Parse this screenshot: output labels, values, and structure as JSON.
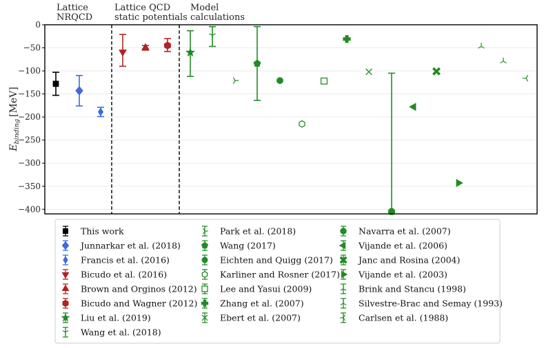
{
  "chart_data": {
    "type": "scatter",
    "ylabel_main": "E",
    "ylabel_sub": "binding",
    "ylabel_unit": "[MeV]",
    "ylim": [
      -410,
      0
    ],
    "yticks": [
      0,
      -50,
      -100,
      -150,
      -200,
      -250,
      -300,
      -350,
      -400
    ],
    "grid": "horizontal",
    "legend_position": "bottom",
    "groups": [
      {
        "line1": "Lattice",
        "line2": "NRQCD"
      },
      {
        "line1": "Lattice QCD",
        "line2": "static potentials"
      },
      {
        "line1": "Model",
        "line2": "calculations"
      }
    ],
    "points": [
      {
        "label": "This work",
        "color": "#000000",
        "marker": "square",
        "y": -128,
        "err_lo": -153,
        "err_hi": -103
      },
      {
        "label": "Junnarkar et al. (2018)",
        "color": "#4169e1",
        "marker": "diamond",
        "y": -143,
        "err_lo": -176,
        "err_hi": -110
      },
      {
        "label": "Francis et al. (2016)",
        "color": "#4169e1",
        "marker": "thin_diamond",
        "y": -189,
        "err_lo": -199,
        "err_hi": -179
      },
      {
        "label": "Bicudo et al. (2016)",
        "color": "#b22222",
        "marker": "triangle_down",
        "y": -59,
        "err_lo": -90,
        "err_hi": -21
      },
      {
        "label": "Brown and Orginos (2012)",
        "color": "#b22222",
        "marker": "triangle_up",
        "y": -50,
        "err_lo": -55,
        "err_hi": -45
      },
      {
        "label": "Bicudo and Wagner (2012)",
        "color": "#b22222",
        "marker": "hexagon_filled",
        "y": -45,
        "err_lo": -58,
        "err_hi": -30
      },
      {
        "label": "Liu et al. (2019)",
        "color": "#228b22",
        "marker": "star",
        "y": -60,
        "err_lo": -112,
        "err_hi": -13
      },
      {
        "label": "Wang et al. (2018)",
        "color": "#228b22",
        "marker": "tri_down",
        "y": -23,
        "err_lo": -47,
        "err_hi": -4
      },
      {
        "label": "Park et al. (2018)",
        "color": "#228b22",
        "marker": "tri_right",
        "y": -121,
        "err_lo": null,
        "err_hi": null
      },
      {
        "label": "Wang (2017)",
        "color": "#228b22",
        "marker": "pentagon",
        "y": -84,
        "err_lo": -164,
        "err_hi": -4
      },
      {
        "label": "Eichten and Quigg (2017)",
        "color": "#228b22",
        "marker": "circle",
        "y": -121,
        "err_lo": null,
        "err_hi": null
      },
      {
        "label": "Karliner and Rosner (2017)",
        "color": "#228b22",
        "marker": "hexagon_open",
        "y": -215,
        "err_lo": null,
        "err_hi": null
      },
      {
        "label": "Lee and Yasui (2009)",
        "color": "#228b22",
        "marker": "square_open",
        "y": -122,
        "err_lo": null,
        "err_hi": null
      },
      {
        "label": "Zhang et al. (2007)",
        "color": "#228b22",
        "marker": "plus_filled",
        "y": -31,
        "err_lo": null,
        "err_hi": null
      },
      {
        "label": "Ebert et al. (2007)",
        "color": "#228b22",
        "marker": "x",
        "y": -102,
        "err_lo": null,
        "err_hi": null
      },
      {
        "label": "Navarra et al. (2007)",
        "color": "#228b22",
        "marker": "octagon",
        "y": -405,
        "err_lo": -405,
        "err_hi": -105
      },
      {
        "label": "Vijande et al. (2006)",
        "color": "#228b22",
        "marker": "triangle_left",
        "y": -178,
        "err_lo": null,
        "err_hi": null
      },
      {
        "label": "Janc and Rosina (2004)",
        "color": "#228b22",
        "marker": "x_filled",
        "y": -101,
        "err_lo": null,
        "err_hi": null
      },
      {
        "label": "Vijande et al. (2003)",
        "color": "#228b22",
        "marker": "triangle_right",
        "y": -343,
        "err_lo": null,
        "err_hi": null
      },
      {
        "label": "Brink and Stancu (1998)",
        "color": "#228b22",
        "marker": "tri_up",
        "y": -47,
        "err_lo": null,
        "err_hi": null
      },
      {
        "label": "Silvestre-Brac and Semay (1993)",
        "color": "#228b22",
        "marker": "tri_up",
        "y": -79,
        "err_lo": null,
        "err_hi": null
      },
      {
        "label": "Carlsen et al. (1988)",
        "color": "#228b22",
        "marker": "tri_left",
        "y": -116,
        "err_lo": null,
        "err_hi": null
      }
    ]
  }
}
